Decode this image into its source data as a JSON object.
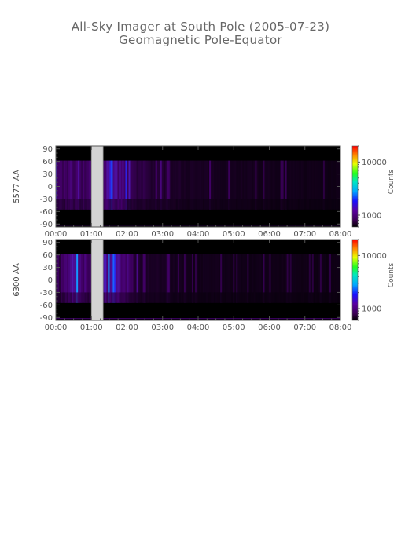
{
  "header": {
    "title": "All-Sky Imager at South Pole (2005-07-23)",
    "subtitle": "Geomagnetic Pole-Equator"
  },
  "colors": {
    "background": "#000000",
    "gap": "#d3d3d3",
    "axis": "#555555"
  },
  "chart_data": [
    {
      "type": "heatmap",
      "ylabel": "5577 AA",
      "x_ticks": [
        "00:00",
        "01:00",
        "02:00",
        "03:00",
        "04:00",
        "05:00",
        "06:00",
        "07:00",
        "08:00"
      ],
      "x_range_hours": [
        0,
        8
      ],
      "y_ticks": [
        90,
        60,
        30,
        0,
        -30,
        -60,
        -90
      ],
      "ylim": [
        -97,
        97
      ],
      "data_lat_range": [
        -55,
        62
      ],
      "no_data_interval_hours": [
        1.0,
        1.33
      ],
      "colorbar": {
        "label": "Counts",
        "scale": "log",
        "ticks": [
          10000,
          1000
        ],
        "tick_labels": [
          "10000",
          "1000"
        ],
        "range": [
          600,
          20000
        ]
      },
      "intensity_profile": [
        {
          "t": 0.0,
          "level": 0.55
        },
        {
          "t": 0.5,
          "level": 0.6
        },
        {
          "t": 1.0,
          "level": 0.58
        },
        {
          "t": 1.33,
          "level": 0.72
        },
        {
          "t": 1.9,
          "level": 0.7
        },
        {
          "t": 2.1,
          "level": 0.48
        },
        {
          "t": 3.0,
          "level": 0.38
        },
        {
          "t": 4.0,
          "level": 0.3
        },
        {
          "t": 5.0,
          "level": 0.28
        },
        {
          "t": 6.0,
          "level": 0.25
        },
        {
          "t": 7.0,
          "level": 0.22
        },
        {
          "t": 8.0,
          "level": 0.2
        }
      ]
    },
    {
      "type": "heatmap",
      "ylabel": "6300 AA",
      "x_ticks": [
        "00:00",
        "01:00",
        "02:00",
        "03:00",
        "04:00",
        "05:00",
        "06:00",
        "07:00",
        "08:00"
      ],
      "x_range_hours": [
        0,
        8
      ],
      "y_ticks": [
        90,
        60,
        30,
        0,
        -30,
        -60,
        -90
      ],
      "ylim": [
        -97,
        97
      ],
      "data_lat_range": [
        -55,
        62
      ],
      "no_data_interval_hours": [
        1.0,
        1.33
      ],
      "colorbar": {
        "label": "Counts",
        "scale": "log",
        "ticks": [
          10000,
          1000
        ],
        "tick_labels": [
          "10000",
          "1000"
        ],
        "range": [
          600,
          20000
        ]
      },
      "intensity_profile": [
        {
          "t": 0.0,
          "level": 0.45
        },
        {
          "t": 0.5,
          "level": 0.75
        },
        {
          "t": 1.0,
          "level": 0.55
        },
        {
          "t": 1.33,
          "level": 0.78
        },
        {
          "t": 2.0,
          "level": 0.65
        },
        {
          "t": 2.3,
          "level": 0.4
        },
        {
          "t": 3.0,
          "level": 0.3
        },
        {
          "t": 4.0,
          "level": 0.25
        },
        {
          "t": 5.0,
          "level": 0.22
        },
        {
          "t": 6.0,
          "level": 0.22
        },
        {
          "t": 7.0,
          "level": 0.2
        },
        {
          "t": 8.0,
          "level": 0.18
        }
      ]
    }
  ]
}
